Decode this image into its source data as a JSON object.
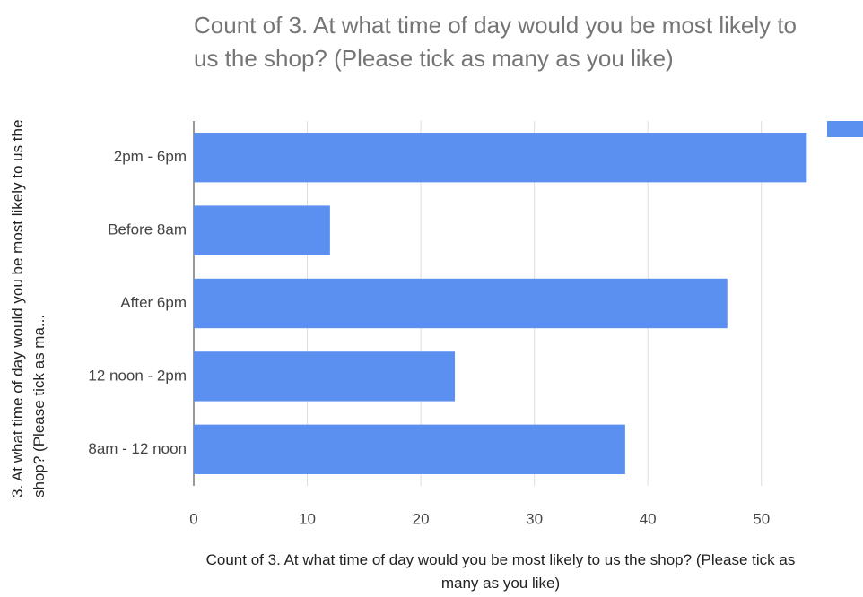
{
  "chart_data": {
    "type": "bar",
    "orientation": "horizontal",
    "title": "Count of 3. At what time of day would you be most likely to us the shop? (Please tick as many as you like)",
    "x_label": "Count of 3. At what time of day would you be most likely to us the shop? (Please tick as many as you like)",
    "y_label": "3. At what time of day would you be most likely to us the shop? (Please tick as ma...",
    "categories": [
      "2pm - 6pm",
      "Before 8am",
      "After 6pm",
      "12 noon - 2pm",
      "8am - 12 noon"
    ],
    "values": [
      54,
      12,
      47,
      23,
      38
    ],
    "color": "#5b8ff0",
    "xlim": [
      0,
      55
    ],
    "xticks": [
      0,
      10,
      20,
      30,
      40,
      50
    ],
    "grid": true
  }
}
